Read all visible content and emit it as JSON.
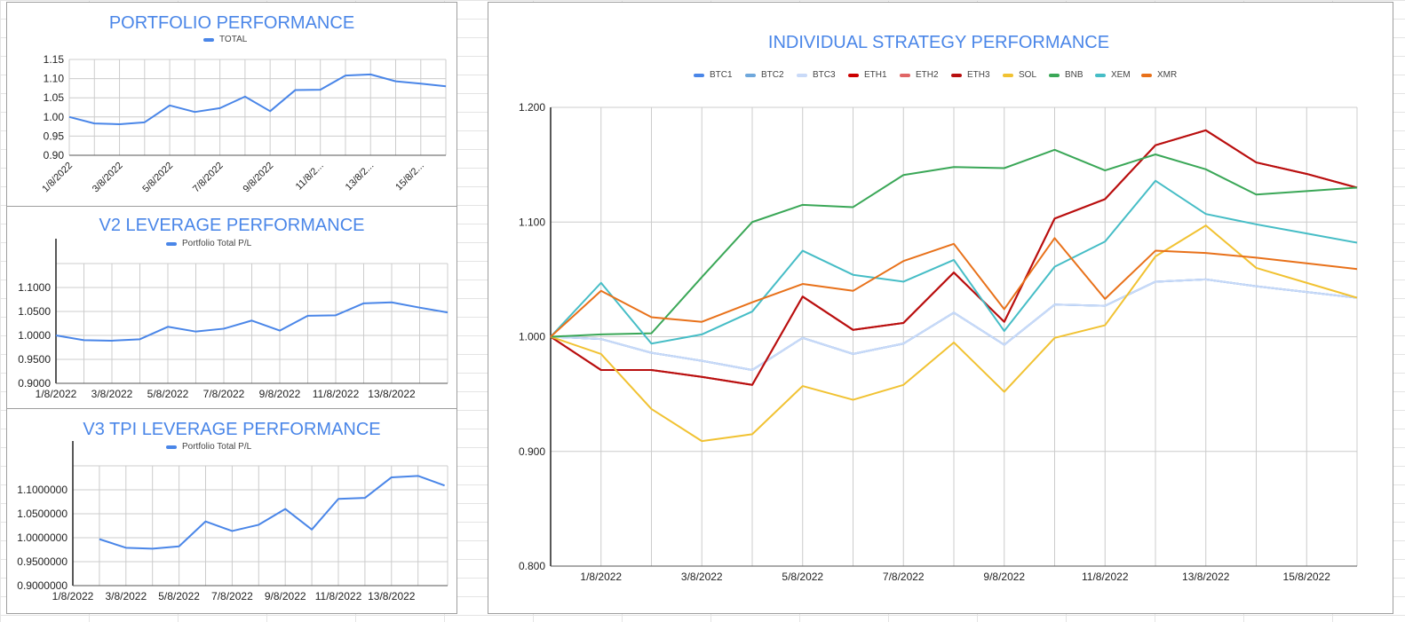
{
  "chart_data": [
    {
      "id": "portfolio",
      "type": "line",
      "title": "PORTFOLIO PERFORMANCE",
      "x": [
        "1/8/2022",
        "2/8/2022",
        "3/8/2022",
        "4/8/2022",
        "5/8/2022",
        "6/8/2022",
        "7/8/2022",
        "8/8/2022",
        "9/8/2022",
        "10/8/2022",
        "11/8/2022",
        "12/8/2022",
        "13/8/2022",
        "14/8/2022",
        "15/8/2022",
        "16/8/2022"
      ],
      "xtick_labels": [
        "1/8/2022",
        "3/8/2022",
        "5/8/2022",
        "7/8/2022",
        "9/8/2022",
        "11/8/2...",
        "13/8/2...",
        "15/8/2..."
      ],
      "yticks": [
        "0.90",
        "0.95",
        "1.00",
        "1.05",
        "1.10",
        "1.15"
      ],
      "ylim": [
        0.9,
        1.15
      ],
      "legend_position": "top",
      "series": [
        {
          "name": "TOTAL",
          "color": "#4a86e8",
          "values": [
            1.0,
            0.983,
            0.981,
            0.986,
            1.03,
            1.013,
            1.023,
            1.053,
            1.015,
            1.07,
            1.071,
            1.108,
            1.111,
            1.093,
            1.087,
            1.08
          ]
        }
      ]
    },
    {
      "id": "v2",
      "type": "line",
      "title": "V2 LEVERAGE PERFORMANCE",
      "x": [
        "1/8/2022",
        "2/8/2022",
        "3/8/2022",
        "4/8/2022",
        "5/8/2022",
        "6/8/2022",
        "7/8/2022",
        "8/8/2022",
        "9/8/2022",
        "10/8/2022",
        "11/8/2022",
        "12/8/2022",
        "13/8/2022",
        "14/8/2022",
        "15/8/2022"
      ],
      "xtick_labels": [
        "1/8/2022",
        "3/8/2022",
        "5/8/2022",
        "7/8/2022",
        "9/8/2022",
        "11/8/2022",
        "13/8/2022"
      ],
      "yticks": [
        "0.9000",
        "0.9500",
        "1.0000",
        "1.0500",
        "1.1000"
      ],
      "ylim": [
        0.9,
        1.15
      ],
      "legend_position": "top",
      "series": [
        {
          "name": "Portfolio Total P/L",
          "color": "#4a86e8",
          "values": [
            1.0,
            0.99,
            0.989,
            0.992,
            1.018,
            1.008,
            1.014,
            1.031,
            1.01,
            1.041,
            1.042,
            1.067,
            1.069,
            1.058,
            1.048
          ]
        }
      ]
    },
    {
      "id": "v3",
      "type": "line",
      "title": "V3 TPI LEVERAGE PERFORMANCE",
      "x": [
        "1/8/2022",
        "2/8/2022",
        "3/8/2022",
        "4/8/2022",
        "5/8/2022",
        "6/8/2022",
        "7/8/2022",
        "8/8/2022",
        "9/8/2022",
        "10/8/2022",
        "11/8/2022",
        "12/8/2022",
        "13/8/2022",
        "14/8/2022",
        "15/8/2022",
        "16/8/2022"
      ],
      "xtick_labels": [
        "1/8/2022",
        "3/8/2022",
        "5/8/2022",
        "7/8/2022",
        "9/8/2022",
        "11/8/2022",
        "13/8/2022"
      ],
      "yticks": [
        "0.9000000",
        "0.9500000",
        "1.0000000",
        "1.0500000",
        "1.1000000"
      ],
      "ylim": [
        0.9,
        1.15
      ],
      "legend_position": "top",
      "series": [
        {
          "name": "Portfolio Total P/L",
          "color": "#4a86e8",
          "values": [
            null,
            0.997,
            0.979,
            0.977,
            0.982,
            1.034,
            1.014,
            1.027,
            1.06,
            1.017,
            1.081,
            1.083,
            1.126,
            1.129,
            1.109,
            null
          ]
        }
      ]
    },
    {
      "id": "individual",
      "type": "line",
      "title": "INDIVIDUAL STRATEGY PERFORMANCE",
      "x": [
        "31/7/2022",
        "1/8/2022",
        "2/8/2022",
        "3/8/2022",
        "4/8/2022",
        "5/8/2022",
        "6/8/2022",
        "7/8/2022",
        "8/8/2022",
        "9/8/2022",
        "10/8/2022",
        "11/8/2022",
        "12/8/2022",
        "13/8/2022",
        "14/8/2022",
        "15/8/2022",
        "16/8/2022"
      ],
      "xtick_labels": [
        "1/8/2022",
        "3/8/2022",
        "5/8/2022",
        "7/8/2022",
        "9/8/2022",
        "11/8/2022",
        "13/8/2022",
        "15/8/2022"
      ],
      "yticks": [
        "0.800",
        "0.900",
        "1.000",
        "1.100",
        "1.200"
      ],
      "ylim": [
        0.8,
        1.2
      ],
      "legend_position": "top",
      "series": [
        {
          "name": "BTC1",
          "color": "#4a86e8",
          "values": [
            1.0,
            0.998,
            0.986,
            0.979,
            0.971,
            0.999,
            0.985,
            0.994,
            1.021,
            0.993,
            1.028,
            1.027,
            1.048,
            1.05,
            1.044,
            1.039,
            1.034
          ]
        },
        {
          "name": "BTC2",
          "color": "#6fa8dc",
          "values": [
            1.0,
            0.998,
            0.986,
            0.979,
            0.971,
            0.999,
            0.985,
            0.994,
            1.021,
            0.993,
            1.028,
            1.027,
            1.048,
            1.05,
            1.044,
            1.039,
            1.034
          ]
        },
        {
          "name": "BTC3",
          "color": "#c9daf8",
          "values": [
            1.0,
            0.998,
            0.986,
            0.979,
            0.971,
            0.999,
            0.985,
            0.994,
            1.021,
            0.993,
            1.028,
            1.027,
            1.048,
            1.05,
            1.044,
            1.039,
            1.034
          ]
        },
        {
          "name": "ETH1",
          "color": "#cc0000",
          "values": [
            1.0,
            0.971,
            0.971,
            0.965,
            0.958,
            1.035,
            1.006,
            1.012,
            1.056,
            1.013,
            1.103,
            1.12,
            1.167,
            1.18,
            1.152,
            1.142,
            1.13
          ]
        },
        {
          "name": "ETH2",
          "color": "#e06666",
          "values": [
            1.0,
            0.971,
            0.971,
            0.965,
            0.958,
            1.035,
            1.006,
            1.012,
            1.056,
            1.013,
            1.103,
            1.12,
            1.167,
            1.18,
            1.152,
            1.142,
            1.13
          ]
        },
        {
          "name": "ETH3",
          "color": "#b80f0f",
          "values": [
            1.0,
            0.971,
            0.971,
            0.965,
            0.958,
            1.035,
            1.006,
            1.012,
            1.056,
            1.013,
            1.103,
            1.12,
            1.167,
            1.18,
            1.152,
            1.142,
            1.13
          ]
        },
        {
          "name": "SOL",
          "color": "#f1c232",
          "values": [
            1.0,
            0.985,
            0.937,
            0.909,
            0.915,
            0.957,
            0.945,
            0.958,
            0.995,
            0.952,
            0.999,
            1.01,
            1.07,
            1.097,
            1.06,
            1.047,
            1.034
          ]
        },
        {
          "name": "BNB",
          "color": "#3aa757",
          "values": [
            1.0,
            1.002,
            1.003,
            1.052,
            1.1,
            1.115,
            1.113,
            1.141,
            1.148,
            1.147,
            1.163,
            1.145,
            1.159,
            1.146,
            1.124,
            1.127,
            1.13
          ]
        },
        {
          "name": "XEM",
          "color": "#46bdc6",
          "values": [
            1.0,
            1.047,
            0.994,
            1.002,
            1.022,
            1.075,
            1.054,
            1.048,
            1.067,
            1.005,
            1.061,
            1.083,
            1.136,
            1.107,
            1.098,
            1.09,
            1.082
          ]
        },
        {
          "name": "XMR",
          "color": "#e8711a",
          "values": [
            1.0,
            1.04,
            1.017,
            1.013,
            1.03,
            1.046,
            1.04,
            1.066,
            1.081,
            1.024,
            1.086,
            1.033,
            1.075,
            1.073,
            1.069,
            1.064,
            1.059
          ]
        }
      ]
    }
  ]
}
